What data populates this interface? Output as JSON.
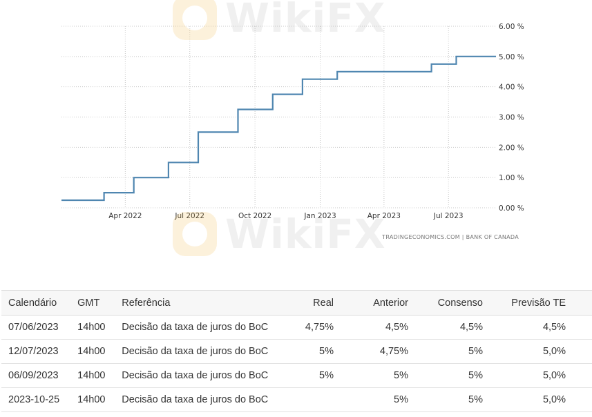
{
  "chart_data": {
    "type": "line",
    "step": true,
    "x_tick_labels": [
      "Apr 2022",
      "Jul 2022",
      "Oct 2022",
      "Jan 2023",
      "Apr 2023",
      "Jul 2023"
    ],
    "x_ticks": [
      "2022-04-01",
      "2022-07-01",
      "2022-10-01",
      "2023-01-01",
      "2023-04-01",
      "2023-07-01"
    ],
    "xlim": [
      "2022-01-01",
      "2023-09-06"
    ],
    "y_tick_labels": [
      "0.00 %",
      "1.00 %",
      "2.00 %",
      "3.00 %",
      "4.00 %",
      "5.00 %",
      "6.00 %"
    ],
    "ylim": [
      0,
      6
    ],
    "grid": true,
    "color": "#4f86b0",
    "series": [
      {
        "points": [
          {
            "x": "2022-01-01",
            "y": 0.25
          },
          {
            "x": "2022-03-02",
            "y": 0.5
          },
          {
            "x": "2022-04-13",
            "y": 1.0
          },
          {
            "x": "2022-06-01",
            "y": 1.5
          },
          {
            "x": "2022-07-13",
            "y": 2.5
          },
          {
            "x": "2022-09-07",
            "y": 3.25
          },
          {
            "x": "2022-10-26",
            "y": 3.75
          },
          {
            "x": "2022-12-07",
            "y": 4.25
          },
          {
            "x": "2023-01-25",
            "y": 4.5
          },
          {
            "x": "2023-06-07",
            "y": 4.75
          },
          {
            "x": "2023-07-12",
            "y": 5.0
          },
          {
            "x": "2023-09-06",
            "y": 5.0
          }
        ]
      }
    ],
    "source": "TRADINGECONOMICS.COM  |  BANK OF CANADA"
  },
  "watermark": {
    "text": "WikiFX"
  },
  "table": {
    "headers": [
      "Calendário",
      "GMT",
      "Referência",
      "Real",
      "Anterior",
      "Consenso",
      "Previsão TE"
    ],
    "rows": [
      {
        "date": "07/06/2023",
        "gmt": "14h00",
        "ref": "Decisão da taxa de juros do BoC",
        "real": "4,75%",
        "anterior": "4,5%",
        "consenso": "4,5%",
        "previsao": "4,5%"
      },
      {
        "date": "12/07/2023",
        "gmt": "14h00",
        "ref": "Decisão da taxa de juros do BoC",
        "real": "5%",
        "anterior": "4,75%",
        "consenso": "5%",
        "previsao": "5,0%"
      },
      {
        "date": "06/09/2023",
        "gmt": "14h00",
        "ref": "Decisão da taxa de juros do BoC",
        "real": "5%",
        "anterior": "5%",
        "consenso": "5%",
        "previsao": "5,0%"
      },
      {
        "date": "2023-10-25",
        "gmt": "14h00",
        "ref": "Decisão da taxa de juros do BoC",
        "real": "",
        "anterior": "5%",
        "consenso": "5%",
        "previsao": "5,0%"
      }
    ]
  }
}
